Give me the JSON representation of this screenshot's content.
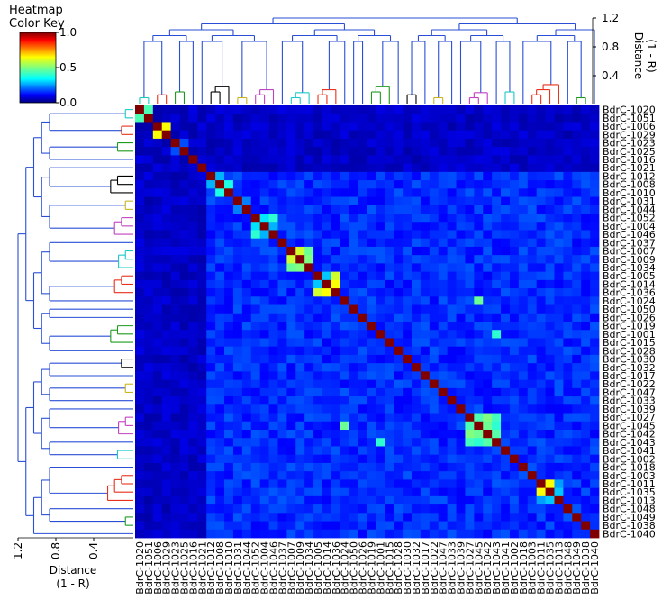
{
  "chart_data": {
    "type": "heatmap",
    "color_key": {
      "title_line1": "Heatmap",
      "title_line2": "Color Key",
      "ticks": [
        "1.0",
        "0.5",
        "0.0"
      ],
      "colormap": "jet",
      "range": [
        0.0,
        1.0
      ]
    },
    "top_dendrogram": {
      "axis_label_line1": "Distance",
      "axis_label_line2": "(1 - R)",
      "ticks": [
        "1.2",
        "0.8",
        "0.4"
      ]
    },
    "left_dendrogram": {
      "axis_label_line1": "Distance",
      "axis_label_line2": "(1 - R)",
      "ticks": [
        "1.2",
        "0.8",
        "0.4"
      ]
    },
    "labels": [
      "BdrC-1020",
      "BdrC-1051",
      "BdrC-1006",
      "BdrC-1029",
      "BdrC-1023",
      "BdrC-1025",
      "BdrC-1016",
      "BdrC-1021",
      "BdrC-1012",
      "BdrC-1008",
      "BdrC-1010",
      "BdrC-1031",
      "BdrC-1044",
      "BdrC-1052",
      "BdrC-1004",
      "BdrC-1046",
      "BdrC-1037",
      "BdrC-1007",
      "BdrC-1009",
      "BdrC-1034",
      "BdrC-1005",
      "BdrC-1014",
      "BdrC-1036",
      "BdrC-1024",
      "BdrC-1050",
      "BdrC-1026",
      "BdrC-1019",
      "BdrC-1001",
      "BdrC-1015",
      "BdrC-1028",
      "BdrC-1030",
      "BdrC-1032",
      "BdrC-1017",
      "BdrC-1022",
      "BdrC-1047",
      "BdrC-1033",
      "BdrC-1039",
      "BdrC-1027",
      "BdrC-1045",
      "BdrC-1042",
      "BdrC-1043",
      "BdrC-1041",
      "BdrC-1002",
      "BdrC-1018",
      "BdrC-1003",
      "BdrC-1011",
      "BdrC-1035",
      "BdrC-1013",
      "BdrC-1048",
      "BdrC-1049",
      "BdrC-1038",
      "BdrC-1040"
    ],
    "high_pairs": [
      {
        "a": "BdrC-1020",
        "b": "BdrC-1051",
        "value": 0.45
      },
      {
        "a": "BdrC-1006",
        "b": "BdrC-1029",
        "value": 0.62
      },
      {
        "a": "BdrC-1023",
        "b": "BdrC-1025",
        "value": 0.2
      },
      {
        "a": "BdrC-1012",
        "b": "BdrC-1008",
        "value": 0.3
      },
      {
        "a": "BdrC-1008",
        "b": "BdrC-1010",
        "value": 0.4
      },
      {
        "a": "BdrC-1031",
        "b": "BdrC-1044",
        "value": 0.25
      },
      {
        "a": "BdrC-1052",
        "b": "BdrC-1004",
        "value": 0.35
      },
      {
        "a": "BdrC-1004",
        "b": "BdrC-1046",
        "value": 0.3
      },
      {
        "a": "BdrC-1052",
        "b": "BdrC-1046",
        "value": 0.42
      },
      {
        "a": "BdrC-1007",
        "b": "BdrC-1009",
        "value": 0.58
      },
      {
        "a": "BdrC-1007",
        "b": "BdrC-1034",
        "value": 0.48
      },
      {
        "a": "BdrC-1009",
        "b": "BdrC-1034",
        "value": 0.5
      },
      {
        "a": "BdrC-1005",
        "b": "BdrC-1014",
        "value": 0.32
      },
      {
        "a": "BdrC-1014",
        "b": "BdrC-1036",
        "value": 0.62
      },
      {
        "a": "BdrC-1005",
        "b": "BdrC-1036",
        "value": 0.58
      },
      {
        "a": "BdrC-1027",
        "b": "BdrC-1045",
        "value": 0.45
      },
      {
        "a": "BdrC-1027",
        "b": "BdrC-1042",
        "value": 0.5
      },
      {
        "a": "BdrC-1027",
        "b": "BdrC-1043",
        "value": 0.44
      },
      {
        "a": "BdrC-1045",
        "b": "BdrC-1042",
        "value": 0.48
      },
      {
        "a": "BdrC-1042",
        "b": "BdrC-1043",
        "value": 0.46
      },
      {
        "a": "BdrC-1045",
        "b": "BdrC-1043",
        "value": 0.42
      },
      {
        "a": "BdrC-1011",
        "b": "BdrC-1035",
        "value": 0.62
      },
      {
        "a": "BdrC-1035",
        "b": "BdrC-1013",
        "value": 0.32
      },
      {
        "a": "BdrC-1011",
        "b": "BdrC-1013",
        "value": 0.28
      },
      {
        "a": "BdrC-1001",
        "b": "BdrC-1043",
        "value": 0.42
      },
      {
        "a": "BdrC-1045",
        "b": "BdrC-1024",
        "value": 0.48
      }
    ],
    "clusters": [
      {
        "color": "#1ac8c8",
        "members": [
          "BdrC-1020",
          "BdrC-1051"
        ]
      },
      {
        "color": "#e8301c",
        "members": [
          "BdrC-1006",
          "BdrC-1029"
        ]
      },
      {
        "color": "#1e9a1e",
        "members": [
          "BdrC-1023",
          "BdrC-1025"
        ]
      },
      {
        "color": "#000000",
        "members": [
          "BdrC-1012",
          "BdrC-1008",
          "BdrC-1010"
        ]
      },
      {
        "color": "#c8b41e",
        "members": [
          "BdrC-1031",
          "BdrC-1044"
        ]
      },
      {
        "color": "#c040c0",
        "members": [
          "BdrC-1052",
          "BdrC-1004",
          "BdrC-1046"
        ]
      },
      {
        "color": "#1ac8c8",
        "members": [
          "BdrC-1007",
          "BdrC-1009",
          "BdrC-1034"
        ]
      },
      {
        "color": "#e8301c",
        "members": [
          "BdrC-1005",
          "BdrC-1014",
          "BdrC-1036"
        ]
      },
      {
        "color": "#1e9a1e",
        "members": [
          "BdrC-1019",
          "BdrC-1001",
          "BdrC-1015"
        ]
      },
      {
        "color": "#000000",
        "members": [
          "BdrC-1030",
          "BdrC-1032"
        ]
      },
      {
        "color": "#c8b41e",
        "members": [
          "BdrC-1022",
          "BdrC-1047"
        ]
      },
      {
        "color": "#c040c0",
        "members": [
          "BdrC-1027",
          "BdrC-1045",
          "BdrC-1042"
        ]
      },
      {
        "color": "#1ac8c8",
        "members": [
          "BdrC-1041",
          "BdrC-1002"
        ]
      },
      {
        "color": "#e8301c",
        "members": [
          "BdrC-1003",
          "BdrC-1011",
          "BdrC-1035",
          "BdrC-1013"
        ]
      },
      {
        "color": "#1e9a1e",
        "members": [
          "BdrC-1049",
          "BdrC-1038"
        ]
      }
    ]
  }
}
